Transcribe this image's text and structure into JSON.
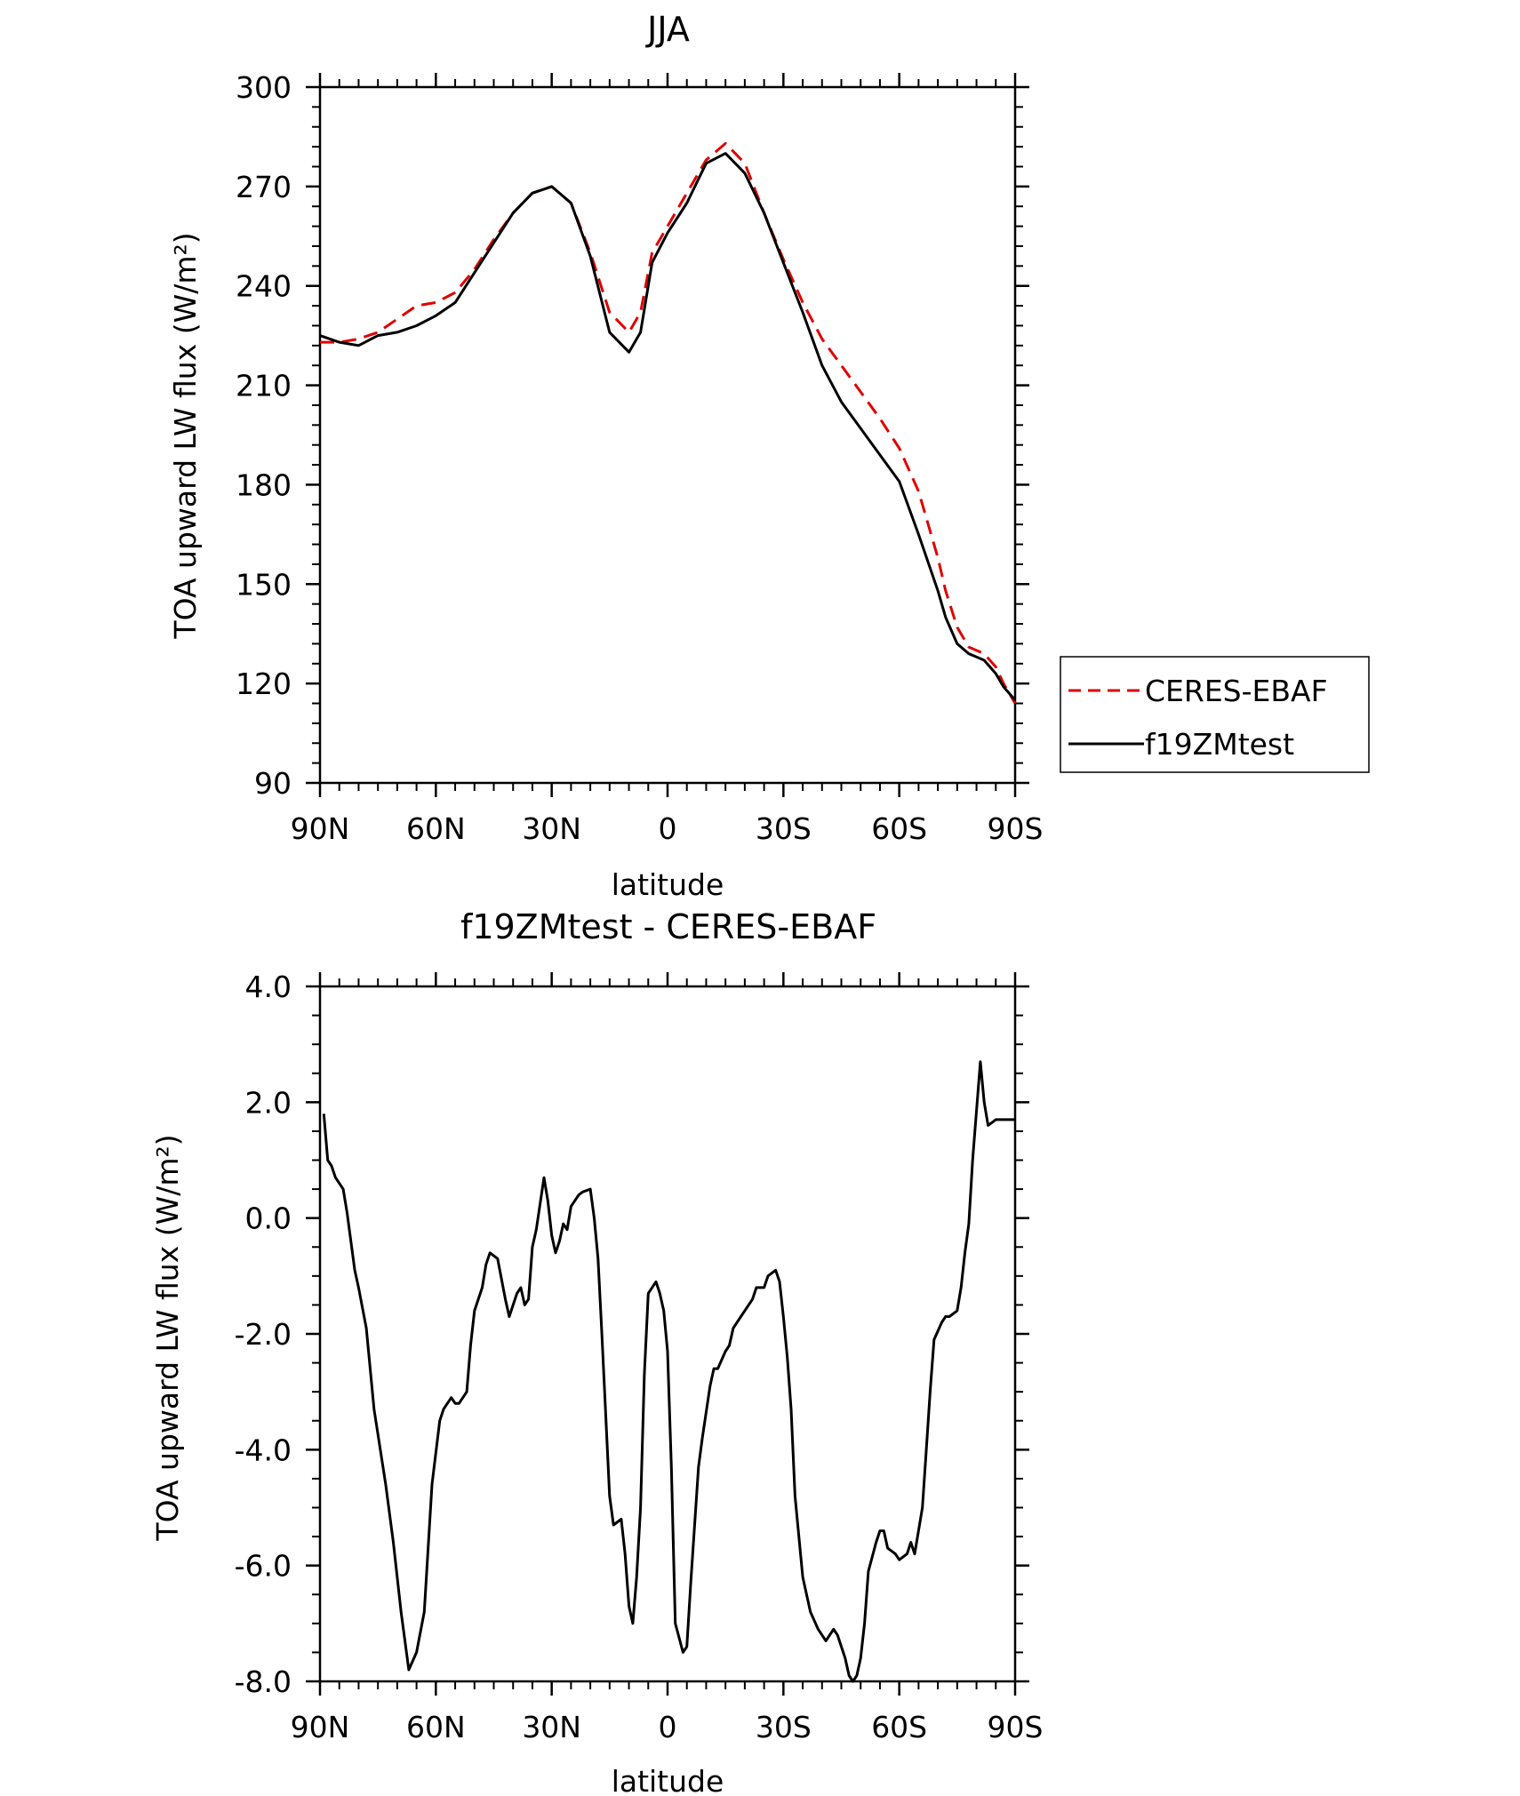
{
  "chart_data": [
    {
      "type": "line",
      "title": "JJA",
      "xlabel": "latitude",
      "ylabel": "TOA upward LW flux (W/m²)",
      "xlim": [
        90,
        -90
      ],
      "ylim": [
        90,
        300
      ],
      "x_ticks": [
        90,
        60,
        30,
        0,
        -30,
        -60,
        -90
      ],
      "x_tick_labels": [
        "90N",
        "60N",
        "30N",
        "0",
        "30S",
        "60S",
        "90S"
      ],
      "y_ticks": [
        90,
        120,
        150,
        180,
        210,
        240,
        270,
        300
      ],
      "y_tick_labels": [
        "90",
        "120",
        "150",
        "180",
        "210",
        "240",
        "270",
        "300"
      ],
      "grid": false,
      "legend": "outside-right",
      "series": [
        {
          "name": "CERES-EBAF",
          "color": "#e00000",
          "dash": "dashed",
          "x": [
            90,
            85,
            80,
            75,
            70,
            65,
            60,
            55,
            50,
            45,
            40,
            35,
            30,
            25,
            20,
            15,
            10,
            7,
            4,
            0,
            -5,
            -10,
            -15,
            -20,
            -25,
            -30,
            -35,
            -40,
            -45,
            -50,
            -55,
            -60,
            -65,
            -70,
            -72,
            -75,
            -78,
            -80,
            -82,
            -85,
            -87,
            -90
          ],
          "y": [
            223,
            223,
            224,
            226,
            230,
            234,
            235,
            238,
            245,
            254,
            262,
            268,
            270,
            265,
            250,
            232,
            226,
            232,
            250,
            258,
            268,
            278,
            283,
            277,
            262,
            248,
            235,
            224,
            216,
            208,
            200,
            191,
            178,
            158,
            148,
            137,
            131,
            130,
            129,
            125,
            120,
            114
          ]
        },
        {
          "name": "f19ZMtest",
          "color": "#000000",
          "dash": "solid",
          "x": [
            90,
            85,
            80,
            75,
            70,
            65,
            60,
            55,
            50,
            45,
            40,
            35,
            30,
            25,
            20,
            15,
            10,
            7,
            4,
            0,
            -5,
            -10,
            -15,
            -20,
            -25,
            -30,
            -35,
            -40,
            -45,
            -50,
            -55,
            -60,
            -65,
            -70,
            -72,
            -75,
            -78,
            -80,
            -82,
            -85,
            -87,
            -90
          ],
          "y": [
            225,
            223,
            222,
            225,
            226,
            228,
            231,
            235,
            244,
            253,
            262,
            268,
            270,
            265,
            249,
            226,
            220,
            226,
            247,
            256,
            265,
            277,
            280,
            274,
            262,
            247,
            232,
            216,
            205,
            197,
            189,
            181,
            165,
            148,
            140,
            132,
            129,
            128,
            127,
            123,
            119,
            115
          ]
        }
      ],
      "legend_entries": [
        "CERES-EBAF",
        "f19ZMtest"
      ]
    },
    {
      "type": "line",
      "title": "f19ZMtest - CERES-EBAF",
      "xlabel": "latitude",
      "ylabel": "TOA upward LW flux (W/m²)",
      "xlim": [
        90,
        -90
      ],
      "ylim": [
        -8,
        4
      ],
      "x_ticks": [
        90,
        60,
        30,
        0,
        -30,
        -60,
        -90
      ],
      "x_tick_labels": [
        "90N",
        "60N",
        "30N",
        "0",
        "30S",
        "60S",
        "90S"
      ],
      "y_ticks": [
        -8,
        -6,
        -4,
        -2,
        0,
        2,
        4
      ],
      "y_tick_labels": [
        "-8.0",
        "-6.0",
        "-4.0",
        "-2.0",
        "0.0",
        "2.0",
        "4.0"
      ],
      "grid": false,
      "series": [
        {
          "color": "#000000",
          "dash": "solid",
          "x": [
            89,
            88,
            87,
            86,
            84,
            83,
            81,
            80,
            78,
            76,
            73,
            71,
            69,
            67,
            65,
            63,
            61,
            59,
            58,
            56,
            55,
            54,
            52,
            51,
            50,
            48,
            47,
            46,
            44,
            42,
            41,
            39,
            38,
            37,
            36,
            35,
            34,
            32,
            31,
            30,
            29,
            28,
            27,
            26,
            25,
            23,
            22,
            20,
            19,
            18,
            17,
            15,
            14,
            12,
            11,
            10,
            9,
            8,
            7,
            6,
            5,
            3,
            2,
            1,
            0,
            -1,
            -2,
            -4,
            -5,
            -6,
            -8,
            -9,
            -11,
            -12,
            -13,
            -15,
            -16,
            -17,
            -19,
            -20,
            -22,
            -23,
            -25,
            -26,
            -28,
            -29,
            -30,
            -31,
            -32,
            -33,
            -35,
            -37,
            -39,
            -41,
            -43,
            -44,
            -46,
            -47,
            -48,
            -49,
            -50,
            -51,
            -52,
            -54,
            -55,
            -56,
            -57,
            -59,
            -60,
            -62,
            -63,
            -64,
            -66,
            -67,
            -68,
            -69,
            -71,
            -72,
            -73,
            -75,
            -76,
            -77,
            -78,
            -79,
            -81,
            -82,
            -83,
            -85,
            -86,
            -87,
            -88,
            -89,
            -90
          ],
          "y": [
            1.8,
            1.0,
            0.9,
            0.7,
            0.5,
            0.1,
            -0.9,
            -1.2,
            -1.9,
            -3.3,
            -4.6,
            -5.6,
            -6.8,
            -7.8,
            -7.5,
            -6.8,
            -4.6,
            -3.5,
            -3.3,
            -3.1,
            -3.2,
            -3.2,
            -3.0,
            -2.2,
            -1.6,
            -1.2,
            -0.8,
            -0.6,
            -0.7,
            -1.4,
            -1.7,
            -1.3,
            -1.2,
            -1.5,
            -1.4,
            -0.5,
            -0.2,
            0.7,
            0.3,
            -0.3,
            -0.6,
            -0.4,
            -0.1,
            -0.2,
            0.2,
            0.4,
            0.45,
            0.5,
            0.0,
            -0.7,
            -2.0,
            -4.8,
            -5.3,
            -5.2,
            -5.8,
            -6.7,
            -7.0,
            -6.2,
            -5.0,
            -2.7,
            -1.3,
            -1.1,
            -1.3,
            -1.6,
            -2.3,
            -4.3,
            -7.0,
            -7.5,
            -7.4,
            -6.3,
            -4.3,
            -3.8,
            -2.9,
            -2.6,
            -2.6,
            -2.3,
            -2.2,
            -1.9,
            -1.7,
            -1.6,
            -1.4,
            -1.2,
            -1.2,
            -1.0,
            -0.9,
            -1.1,
            -1.7,
            -2.4,
            -3.3,
            -4.8,
            -6.2,
            -6.8,
            -7.1,
            -7.3,
            -7.1,
            -7.2,
            -7.6,
            -7.9,
            -8.0,
            -7.9,
            -7.6,
            -7.0,
            -6.1,
            -5.6,
            -5.4,
            -5.4,
            -5.7,
            -5.8,
            -5.9,
            -5.8,
            -5.6,
            -5.8,
            -5.0,
            -4.0,
            -3.0,
            -2.1,
            -1.8,
            -1.7,
            -1.7,
            -1.6,
            -1.2,
            -0.6,
            -0.1,
            1.0,
            2.7,
            2.0,
            1.6,
            1.7,
            1.7,
            1.7,
            1.7,
            1.7,
            1.7
          ]
        }
      ]
    }
  ]
}
